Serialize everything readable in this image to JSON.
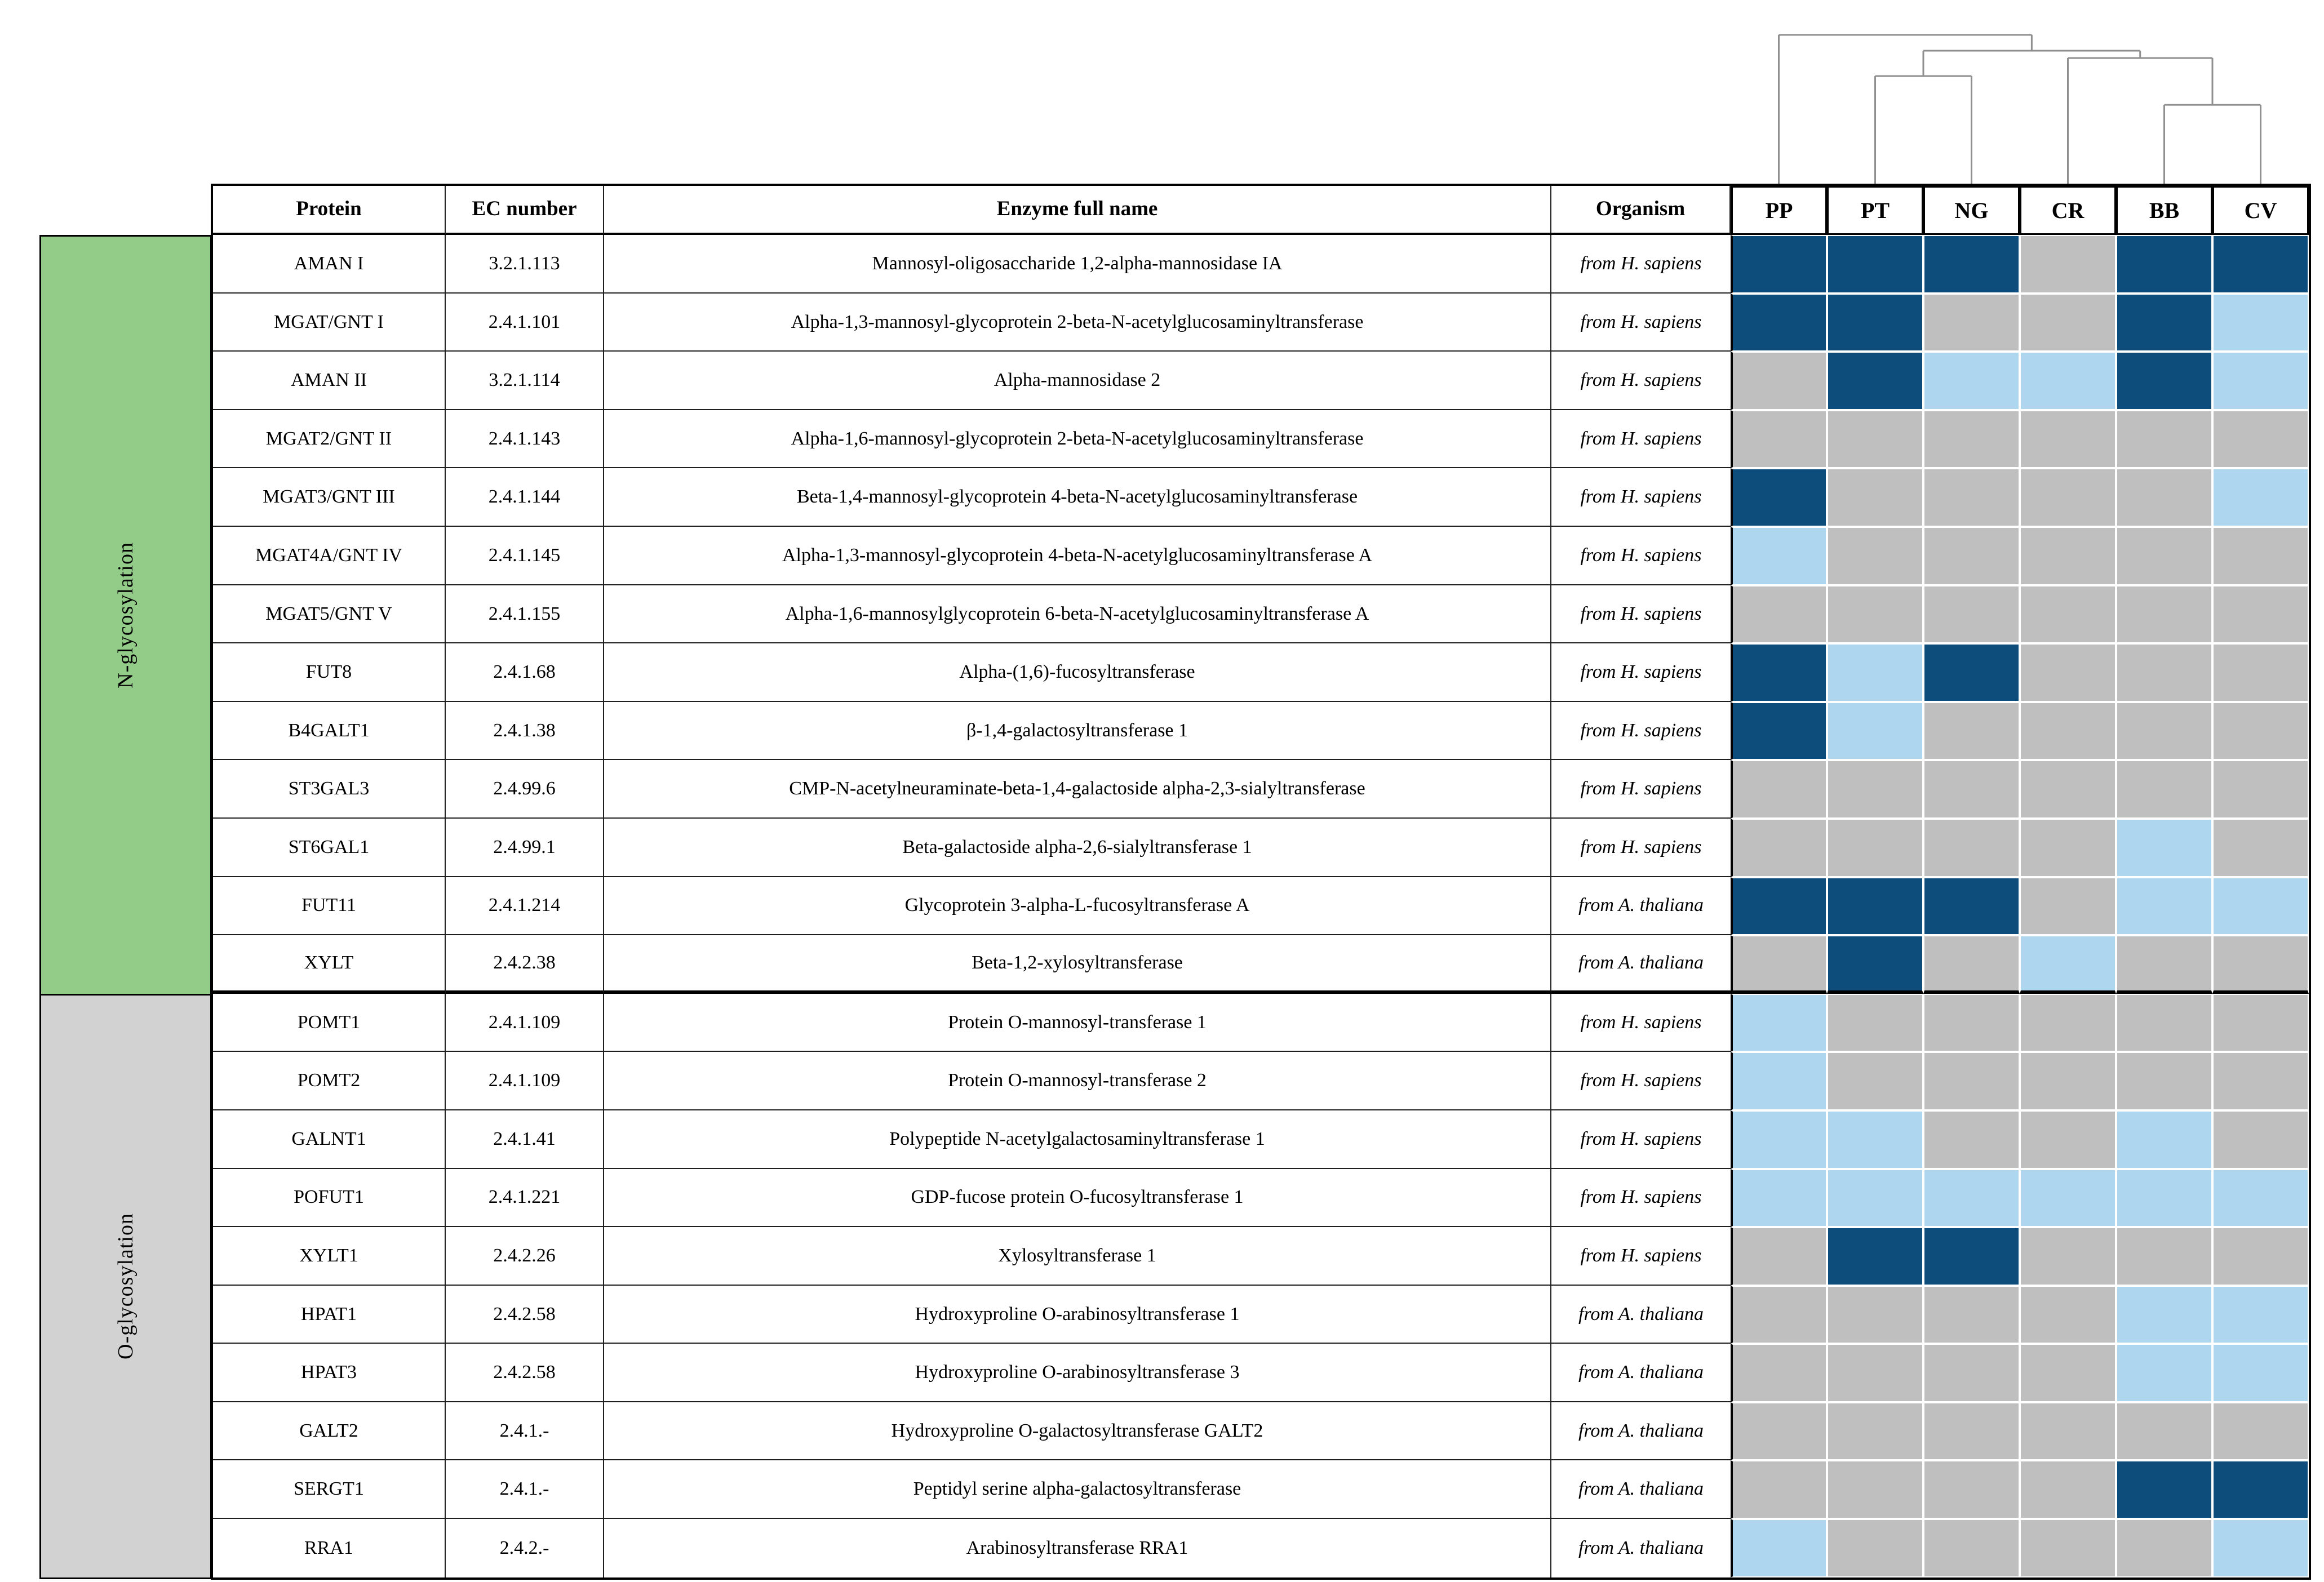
{
  "palette": {
    "cell_dark": "#0d4d7c",
    "cell_light": "#aed6ef",
    "cell_absent": "#bfbfbf",
    "grid_line": "#1f1f1f",
    "dendrogram_line": "#8f8f8f"
  },
  "table": {
    "columns": [
      "Protein",
      "EC number",
      "Enzyme full name",
      "Organism"
    ],
    "sections": [
      {
        "label": "N-glycosylation",
        "color": "#93cc88",
        "row_count": 13
      },
      {
        "label": "O-glycosylation",
        "color": "#d2d2d2",
        "row_count": 10
      }
    ],
    "rows": [
      {
        "protein": "AMAN I",
        "ec": "3.2.1.113",
        "name": "Mannosyl-oligosaccharide 1,2-alpha-mannosidase IA",
        "organism": "from H. sapiens"
      },
      {
        "protein": "MGAT/GNT I",
        "ec": "2.4.1.101",
        "name": "Alpha-1,3-mannosyl-glycoprotein 2-beta-N-acetylglucosaminyltransferase",
        "organism": "from H. sapiens"
      },
      {
        "protein": "AMAN II",
        "ec": "3.2.1.114",
        "name": "Alpha-mannosidase 2",
        "organism": "from H. sapiens"
      },
      {
        "protein": "MGAT2/GNT II",
        "ec": "2.4.1.143",
        "name": "Alpha-1,6-mannosyl-glycoprotein 2-beta-N-acetylglucosaminyltransferase",
        "organism": "from H. sapiens"
      },
      {
        "protein": "MGAT3/GNT III",
        "ec": "2.4.1.144",
        "name": "Beta-1,4-mannosyl-glycoprotein 4-beta-N-acetylglucosaminyltransferase",
        "organism": "from H. sapiens"
      },
      {
        "protein": "MGAT4A/GNT IV",
        "ec": "2.4.1.145",
        "name": "Alpha-1,3-mannosyl-glycoprotein 4-beta-N-acetylglucosaminyltransferase A",
        "organism": "from H. sapiens"
      },
      {
        "protein": "MGAT5/GNT V",
        "ec": "2.4.1.155",
        "name": "Alpha-1,6-mannosylglycoprotein 6-beta-N-acetylglucosaminyltransferase A",
        "organism": "from H. sapiens"
      },
      {
        "protein": "FUT8",
        "ec": "2.4.1.68",
        "name": "Alpha-(1,6)-fucosyltransferase",
        "organism": "from H. sapiens"
      },
      {
        "protein": "B4GALT1",
        "ec": "2.4.1.38",
        "name": "β-1,4-galactosyltransferase 1",
        "organism": "from H. sapiens"
      },
      {
        "protein": "ST3GAL3",
        "ec": "2.4.99.6",
        "name": "CMP-N-acetylneuraminate-beta-1,4-galactoside alpha-2,3-sialyltransferase",
        "organism": "from H. sapiens"
      },
      {
        "protein": "ST6GAL1",
        "ec": "2.4.99.1",
        "name": "Beta-galactoside alpha-2,6-sialyltransferase 1",
        "organism": "from H. sapiens"
      },
      {
        "protein": "FUT11",
        "ec": "2.4.1.214",
        "name": "Glycoprotein 3-alpha-L-fucosyltransferase A",
        "organism": "from A. thaliana"
      },
      {
        "protein": "XYLT",
        "ec": "2.4.2.38",
        "name": "Beta-1,2-xylosyltransferase",
        "organism": "from A. thaliana"
      },
      {
        "protein": "POMT1",
        "ec": "2.4.1.109",
        "name": "Protein O-mannosyl-transferase 1",
        "organism": "from H. sapiens"
      },
      {
        "protein": "POMT2",
        "ec": "2.4.1.109",
        "name": "Protein O-mannosyl-transferase 2",
        "organism": "from H. sapiens"
      },
      {
        "protein": "GALNT1",
        "ec": "2.4.1.41",
        "name": "Polypeptide N-acetylgalactosaminyltransferase 1",
        "organism": "from H. sapiens"
      },
      {
        "protein": "POFUT1",
        "ec": "2.4.1.221",
        "name": "GDP-fucose protein O-fucosyltransferase 1",
        "organism": "from H. sapiens"
      },
      {
        "protein": "XYLT1",
        "ec": "2.4.2.26",
        "name": "Xylosyltransferase 1",
        "organism": "from H. sapiens"
      },
      {
        "protein": "HPAT1",
        "ec": "2.4.2.58",
        "name": "Hydroxyproline O-arabinosyltransferase 1",
        "organism": "from A. thaliana"
      },
      {
        "protein": "HPAT3",
        "ec": "2.4.2.58",
        "name": "Hydroxyproline O-arabinosyltransferase 3",
        "organism": "from A. thaliana"
      },
      {
        "protein": "GALT2",
        "ec": "2.4.1.-",
        "name": "Hydroxyproline O-galactosyltransferase GALT2",
        "organism": "from A. thaliana"
      },
      {
        "protein": "SERGT1",
        "ec": "2.4.1.-",
        "name": "Peptidyl serine alpha-galactosyltransferase",
        "organism": "from A. thaliana"
      },
      {
        "protein": "RRA1",
        "ec": "2.4.2.-",
        "name": "Arabinosyltransferase RRA1",
        "organism": "from A. thaliana"
      }
    ]
  },
  "chart_data": {
    "type": "heatmap",
    "columns": [
      "PP",
      "PT",
      "NG",
      "CR",
      "BB",
      "CV"
    ],
    "rows": [
      "AMAN I",
      "MGAT/GNT I",
      "AMAN II",
      "MGAT2/GNT II",
      "MGAT3/GNT III",
      "MGAT4A/GNT IV",
      "MGAT5/GNT V",
      "FUT8",
      "B4GALT1",
      "ST3GAL3",
      "ST6GAL1",
      "FUT11",
      "XYLT",
      "POMT1",
      "POMT2",
      "GALNT1",
      "POFUT1",
      "XYLT1",
      "HPAT1",
      "HPAT3",
      "GALT2",
      "SERGT1",
      "RRA1"
    ],
    "values": [
      [
        2,
        2,
        2,
        0,
        2,
        2
      ],
      [
        2,
        2,
        0,
        0,
        2,
        1
      ],
      [
        0,
        2,
        1,
        1,
        2,
        1
      ],
      [
        0,
        0,
        0,
        0,
        0,
        0
      ],
      [
        2,
        0,
        0,
        0,
        0,
        1
      ],
      [
        1,
        0,
        0,
        0,
        0,
        0
      ],
      [
        0,
        0,
        0,
        0,
        0,
        0
      ],
      [
        2,
        1,
        2,
        0,
        0,
        0
      ],
      [
        2,
        1,
        0,
        0,
        0,
        0
      ],
      [
        0,
        0,
        0,
        0,
        0,
        0
      ],
      [
        0,
        0,
        0,
        0,
        1,
        0
      ],
      [
        2,
        2,
        2,
        0,
        1,
        1
      ],
      [
        0,
        2,
        0,
        1,
        0,
        0
      ],
      [
        1,
        0,
        0,
        0,
        0,
        0
      ],
      [
        1,
        0,
        0,
        0,
        0,
        0
      ],
      [
        1,
        1,
        0,
        0,
        1,
        0
      ],
      [
        1,
        1,
        1,
        1,
        1,
        1
      ],
      [
        0,
        2,
        2,
        0,
        0,
        0
      ],
      [
        0,
        0,
        0,
        0,
        1,
        1
      ],
      [
        0,
        0,
        0,
        0,
        1,
        1
      ],
      [
        0,
        0,
        0,
        0,
        0,
        0
      ],
      [
        0,
        0,
        0,
        0,
        2,
        2
      ],
      [
        1,
        0,
        0,
        0,
        0,
        1
      ]
    ],
    "value_colors": {
      "2": "#0d4d7c",
      "1": "#aed6ef",
      "0": "#bfbfbf"
    },
    "legend_position": "none",
    "grid": true,
    "dendrogram_newick": "(PP,((PT,NG),(CR,(BB,CV))));",
    "dendrogram_tree": {
      "h": 0.043,
      "children": [
        {
          "leaf": "PP"
        },
        {
          "h": 0.145,
          "children": [
            {
              "h": 0.308,
              "children": [
                {
                  "leaf": "PT"
                },
                {
                  "leaf": "NG"
                }
              ]
            },
            {
              "h": 0.192,
              "children": [
                {
                  "leaf": "CR"
                },
                {
                  "h": 0.493,
                  "children": [
                    {
                      "leaf": "BB"
                    },
                    {
                      "leaf": "CV"
                    }
                  ]
                }
              ]
            }
          ]
        }
      ]
    }
  }
}
